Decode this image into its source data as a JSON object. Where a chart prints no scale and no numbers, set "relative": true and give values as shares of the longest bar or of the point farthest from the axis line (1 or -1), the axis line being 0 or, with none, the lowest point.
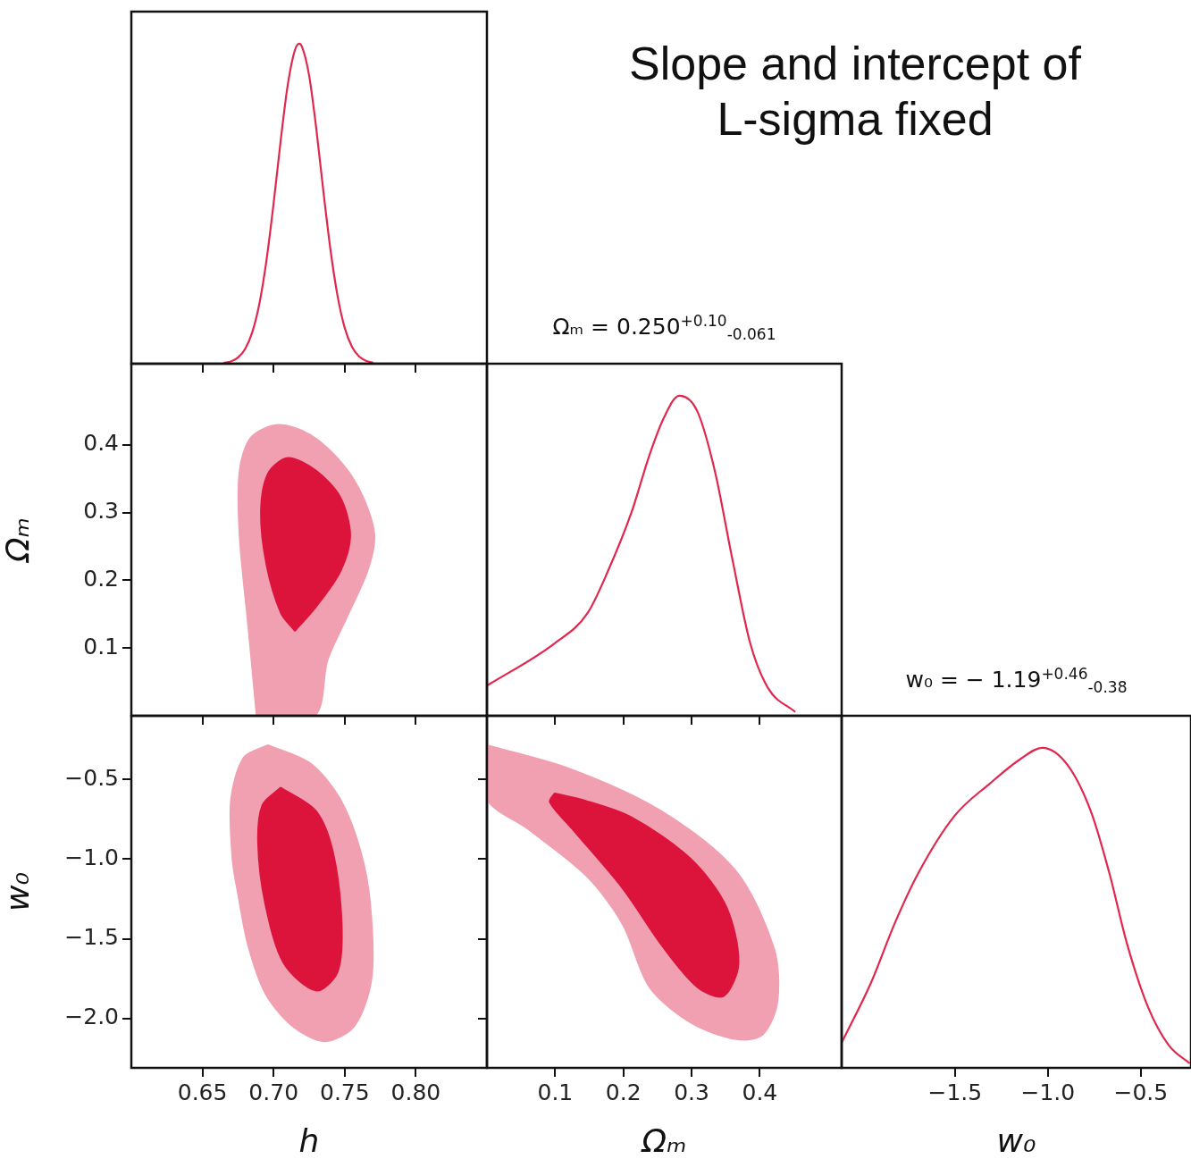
{
  "chart_data": [
    {
      "type": "line",
      "relative": true,
      "color": "#e0284e",
      "tick_labels": false,
      "xlim": [
        0.6,
        0.85
      ],
      "xticks": [
        0.65,
        0.7,
        0.75,
        0.8
      ],
      "x": [
        0.665,
        0.67,
        0.675,
        0.68,
        0.685,
        0.69,
        0.695,
        0.7,
        0.705,
        0.71,
        0.715,
        0.718,
        0.72,
        0.725,
        0.73,
        0.735,
        0.74,
        0.745,
        0.75,
        0.755,
        0.76,
        0.765,
        0.77
      ],
      "values": [
        0.003,
        0.007,
        0.019,
        0.046,
        0.098,
        0.187,
        0.323,
        0.5,
        0.697,
        0.872,
        0.98,
        1,
        0.99,
        0.9,
        0.735,
        0.539,
        0.356,
        0.211,
        0.112,
        0.054,
        0.023,
        0.009,
        0.003
      ]
    },
    {
      "type": "area",
      "ylabel": "Ωₘ",
      "tick_labels": "y",
      "xlim": [
        0.6,
        0.85
      ],
      "xticks": [
        0.65,
        0.7,
        0.75,
        0.8
      ],
      "ylim": [
        0,
        0.52
      ],
      "yticks": [
        0.1,
        0.2,
        0.3,
        0.4
      ],
      "series": [
        {
          "color": "#f0a0b0",
          "x": [
            0.688,
            0.682,
            0.676,
            0.676,
            0.684,
            0.703,
            0.726,
            0.749,
            0.763,
            0.771,
            0.766,
            0.751,
            0.738,
            0.729
          ],
          "values": [
            0,
            0.134,
            0.266,
            0.362,
            0.411,
            0.43,
            0.415,
            0.371,
            0.323,
            0.266,
            0.213,
            0.143,
            0.082,
            0
          ]
        },
        {
          "color": "#dc143c",
          "x": [
            0.715,
            0.705,
            0.695,
            0.691,
            0.696,
            0.71,
            0.73,
            0.747,
            0.754,
            0.747,
            0.73
          ],
          "values": [
            0.125,
            0.152,
            0.222,
            0.301,
            0.358,
            0.381,
            0.362,
            0.323,
            0.266,
            0.213,
            0.161
          ]
        }
      ]
    },
    {
      "type": "line",
      "title": "Ωₘ = 0.250$^{+0.10}$$_{-0.061}$",
      "relative": true,
      "color": "#e0284e",
      "tick_labels": false,
      "xlim": [
        0,
        0.52
      ],
      "xticks": [
        0.1,
        0.2,
        0.3,
        0.4
      ],
      "x": [
        0,
        0.099,
        0.147,
        0.177,
        0.212,
        0.238,
        0.26,
        0.282,
        0.308,
        0.334,
        0.36,
        0.386,
        0.412,
        0.452
      ],
      "values": [
        0.094,
        0.226,
        0.319,
        0.45,
        0.636,
        0.813,
        0.934,
        1,
        0.953,
        0.766,
        0.487,
        0.226,
        0.087,
        0.012
      ]
    },
    {
      "type": "area",
      "xlabel": "h",
      "ylabel": "w₀",
      "xlim": [
        0.6,
        0.85
      ],
      "xticks": [
        0.65,
        {
          "value": 0.7,
          "label": "0.70"
        },
        0.75,
        {
          "value": 0.8,
          "label": "0.80"
        }
      ],
      "ylim": [
        -2.31,
        -0.1
      ],
      "yticks": [
        {
          "value": -2,
          "label": "−2.0"
        },
        {
          "value": -1.5,
          "label": "−1.5"
        },
        {
          "value": -1,
          "label": "−1.0"
        },
        {
          "value": -0.5,
          "label": "−0.5"
        }
      ],
      "series": [
        {
          "color": "#f0a0b0",
          "x": [
            0.696,
            0.679,
            0.67,
            0.671,
            0.675,
            0.682,
            0.694,
            0.713,
            0.736,
            0.757,
            0.769,
            0.768,
            0.761,
            0.747,
            0.726
          ],
          "values": [
            -0.283,
            -0.361,
            -0.624,
            -0.998,
            -1.223,
            -1.541,
            -1.841,
            -2.047,
            -2.144,
            -2.047,
            -1.747,
            -1.279,
            -0.942,
            -0.624,
            -0.399
          ]
        },
        {
          "color": "#dc143c",
          "x": [
            0.705,
            0.692,
            0.689,
            0.694,
            0.707,
            0.73,
            0.745,
            0.748,
            0.742,
            0.73
          ],
          "values": [
            -0.549,
            -0.661,
            -0.904,
            -1.279,
            -1.653,
            -1.826,
            -1.71,
            -1.41,
            -0.961,
            -0.698
          ]
        }
      ]
    },
    {
      "type": "area",
      "xlabel": "Ωₘ",
      "tick_labels": "x",
      "xlim": [
        0,
        0.52
      ],
      "xticks": [
        0.1,
        0.2,
        0.3,
        0.4
      ],
      "ylim": [
        -2.31,
        -0.1
      ],
      "yticks": [
        -2,
        -1.5,
        -1,
        -0.5
      ],
      "series": [
        {
          "color": "#f0a0b0",
          "x": [
            0,
            0.125,
            0.256,
            0.365,
            0.421,
            0.426,
            0.404,
            0.365,
            0.299,
            0.238,
            0.199,
            0.147,
            0.06,
            0
          ],
          "values": [
            -0.283,
            -0.437,
            -0.698,
            -1.073,
            -1.56,
            -1.897,
            -2.103,
            -2.131,
            -2.028,
            -1.803,
            -1.41,
            -1.111,
            -0.811,
            -0.624
          ]
        },
        {
          "color": "#dc143c",
          "x": [
            0.099,
            0.138,
            0.212,
            0.299,
            0.351,
            0.369,
            0.347,
            0.308,
            0.256,
            0.199,
            0.125,
            0.092
          ],
          "values": [
            -0.586,
            -0.624,
            -0.736,
            -0.998,
            -1.298,
            -1.653,
            -1.86,
            -1.803,
            -1.541,
            -1.185,
            -0.811,
            -0.642
          ]
        }
      ]
    },
    {
      "type": "line",
      "title": "w₀ = − 1.19$^{+0.46}$$_{-0.38}$",
      "xlabel": "w₀",
      "relative": true,
      "color": "#e0284e",
      "tick_labels": "x",
      "xlim": [
        -2.11,
        -0.23
      ],
      "xticks": [
        {
          "value": -1.5,
          "label": "−1.5"
        },
        {
          "value": -1,
          "label": "−1.0"
        },
        {
          "value": -0.5,
          "label": "−0.5"
        }
      ],
      "x": [
        -2.11,
        -1.952,
        -1.824,
        -1.696,
        -1.503,
        -1.311,
        -1.15,
        -1.03,
        -0.894,
        -0.766,
        -0.67,
        -0.574,
        -0.462,
        -0.349,
        -0.237
      ],
      "values": [
        0.079,
        0.266,
        0.452,
        0.61,
        0.787,
        0.889,
        0.964,
        1,
        0.946,
        0.797,
        0.61,
        0.387,
        0.191,
        0.07,
        0.014
      ]
    },
    {
      "type": "other",
      "title": "Slope and intercept of L-sigma fixed"
    }
  ]
}
